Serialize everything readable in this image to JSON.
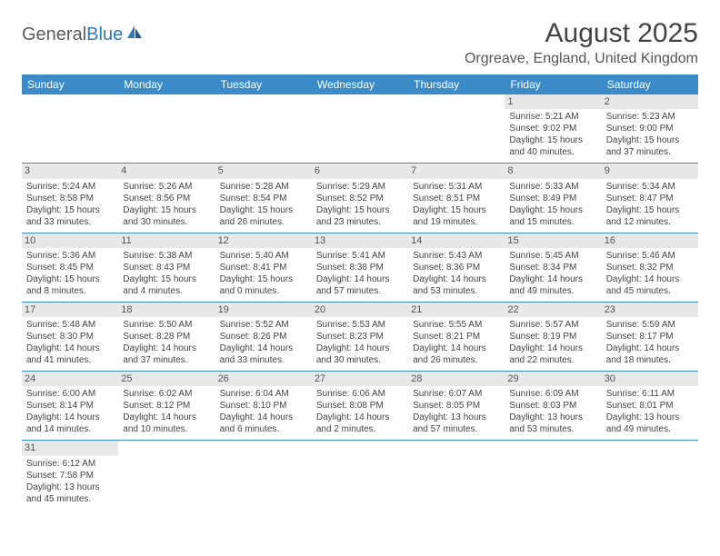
{
  "logo": {
    "part1": "General",
    "part2": "Blue"
  },
  "title": "August 2025",
  "location": "Orgreave, England, United Kingdom",
  "colors": {
    "header_bg": "#3b8bc8",
    "header_text": "#ffffff",
    "daynum_bg": "#e8e8e8",
    "rule": "#3b8bc8",
    "text": "#444444"
  },
  "weekdays": [
    "Sunday",
    "Monday",
    "Tuesday",
    "Wednesday",
    "Thursday",
    "Friday",
    "Saturday"
  ],
  "weeks": [
    [
      {
        "n": "",
        "sr": "",
        "ss": "",
        "dl": ""
      },
      {
        "n": "",
        "sr": "",
        "ss": "",
        "dl": ""
      },
      {
        "n": "",
        "sr": "",
        "ss": "",
        "dl": ""
      },
      {
        "n": "",
        "sr": "",
        "ss": "",
        "dl": ""
      },
      {
        "n": "",
        "sr": "",
        "ss": "",
        "dl": ""
      },
      {
        "n": "1",
        "sr": "Sunrise: 5:21 AM",
        "ss": "Sunset: 9:02 PM",
        "dl": "Daylight: 15 hours and 40 minutes."
      },
      {
        "n": "2",
        "sr": "Sunrise: 5:23 AM",
        "ss": "Sunset: 9:00 PM",
        "dl": "Daylight: 15 hours and 37 minutes."
      }
    ],
    [
      {
        "n": "3",
        "sr": "Sunrise: 5:24 AM",
        "ss": "Sunset: 8:58 PM",
        "dl": "Daylight: 15 hours and 33 minutes."
      },
      {
        "n": "4",
        "sr": "Sunrise: 5:26 AM",
        "ss": "Sunset: 8:56 PM",
        "dl": "Daylight: 15 hours and 30 minutes."
      },
      {
        "n": "5",
        "sr": "Sunrise: 5:28 AM",
        "ss": "Sunset: 8:54 PM",
        "dl": "Daylight: 15 hours and 26 minutes."
      },
      {
        "n": "6",
        "sr": "Sunrise: 5:29 AM",
        "ss": "Sunset: 8:52 PM",
        "dl": "Daylight: 15 hours and 23 minutes."
      },
      {
        "n": "7",
        "sr": "Sunrise: 5:31 AM",
        "ss": "Sunset: 8:51 PM",
        "dl": "Daylight: 15 hours and 19 minutes."
      },
      {
        "n": "8",
        "sr": "Sunrise: 5:33 AM",
        "ss": "Sunset: 8:49 PM",
        "dl": "Daylight: 15 hours and 15 minutes."
      },
      {
        "n": "9",
        "sr": "Sunrise: 5:34 AM",
        "ss": "Sunset: 8:47 PM",
        "dl": "Daylight: 15 hours and 12 minutes."
      }
    ],
    [
      {
        "n": "10",
        "sr": "Sunrise: 5:36 AM",
        "ss": "Sunset: 8:45 PM",
        "dl": "Daylight: 15 hours and 8 minutes."
      },
      {
        "n": "11",
        "sr": "Sunrise: 5:38 AM",
        "ss": "Sunset: 8:43 PM",
        "dl": "Daylight: 15 hours and 4 minutes."
      },
      {
        "n": "12",
        "sr": "Sunrise: 5:40 AM",
        "ss": "Sunset: 8:41 PM",
        "dl": "Daylight: 15 hours and 0 minutes."
      },
      {
        "n": "13",
        "sr": "Sunrise: 5:41 AM",
        "ss": "Sunset: 8:38 PM",
        "dl": "Daylight: 14 hours and 57 minutes."
      },
      {
        "n": "14",
        "sr": "Sunrise: 5:43 AM",
        "ss": "Sunset: 8:36 PM",
        "dl": "Daylight: 14 hours and 53 minutes."
      },
      {
        "n": "15",
        "sr": "Sunrise: 5:45 AM",
        "ss": "Sunset: 8:34 PM",
        "dl": "Daylight: 14 hours and 49 minutes."
      },
      {
        "n": "16",
        "sr": "Sunrise: 5:46 AM",
        "ss": "Sunset: 8:32 PM",
        "dl": "Daylight: 14 hours and 45 minutes."
      }
    ],
    [
      {
        "n": "17",
        "sr": "Sunrise: 5:48 AM",
        "ss": "Sunset: 8:30 PM",
        "dl": "Daylight: 14 hours and 41 minutes."
      },
      {
        "n": "18",
        "sr": "Sunrise: 5:50 AM",
        "ss": "Sunset: 8:28 PM",
        "dl": "Daylight: 14 hours and 37 minutes."
      },
      {
        "n": "19",
        "sr": "Sunrise: 5:52 AM",
        "ss": "Sunset: 8:26 PM",
        "dl": "Daylight: 14 hours and 33 minutes."
      },
      {
        "n": "20",
        "sr": "Sunrise: 5:53 AM",
        "ss": "Sunset: 8:23 PM",
        "dl": "Daylight: 14 hours and 30 minutes."
      },
      {
        "n": "21",
        "sr": "Sunrise: 5:55 AM",
        "ss": "Sunset: 8:21 PM",
        "dl": "Daylight: 14 hours and 26 minutes."
      },
      {
        "n": "22",
        "sr": "Sunrise: 5:57 AM",
        "ss": "Sunset: 8:19 PM",
        "dl": "Daylight: 14 hours and 22 minutes."
      },
      {
        "n": "23",
        "sr": "Sunrise: 5:59 AM",
        "ss": "Sunset: 8:17 PM",
        "dl": "Daylight: 14 hours and 18 minutes."
      }
    ],
    [
      {
        "n": "24",
        "sr": "Sunrise: 6:00 AM",
        "ss": "Sunset: 8:14 PM",
        "dl": "Daylight: 14 hours and 14 minutes."
      },
      {
        "n": "25",
        "sr": "Sunrise: 6:02 AM",
        "ss": "Sunset: 8:12 PM",
        "dl": "Daylight: 14 hours and 10 minutes."
      },
      {
        "n": "26",
        "sr": "Sunrise: 6:04 AM",
        "ss": "Sunset: 8:10 PM",
        "dl": "Daylight: 14 hours and 6 minutes."
      },
      {
        "n": "27",
        "sr": "Sunrise: 6:06 AM",
        "ss": "Sunset: 8:08 PM",
        "dl": "Daylight: 14 hours and 2 minutes."
      },
      {
        "n": "28",
        "sr": "Sunrise: 6:07 AM",
        "ss": "Sunset: 8:05 PM",
        "dl": "Daylight: 13 hours and 57 minutes."
      },
      {
        "n": "29",
        "sr": "Sunrise: 6:09 AM",
        "ss": "Sunset: 8:03 PM",
        "dl": "Daylight: 13 hours and 53 minutes."
      },
      {
        "n": "30",
        "sr": "Sunrise: 6:11 AM",
        "ss": "Sunset: 8:01 PM",
        "dl": "Daylight: 13 hours and 49 minutes."
      }
    ],
    [
      {
        "n": "31",
        "sr": "Sunrise: 6:12 AM",
        "ss": "Sunset: 7:58 PM",
        "dl": "Daylight: 13 hours and 45 minutes."
      },
      {
        "n": "",
        "sr": "",
        "ss": "",
        "dl": ""
      },
      {
        "n": "",
        "sr": "",
        "ss": "",
        "dl": ""
      },
      {
        "n": "",
        "sr": "",
        "ss": "",
        "dl": ""
      },
      {
        "n": "",
        "sr": "",
        "ss": "",
        "dl": ""
      },
      {
        "n": "",
        "sr": "",
        "ss": "",
        "dl": ""
      },
      {
        "n": "",
        "sr": "",
        "ss": "",
        "dl": ""
      }
    ]
  ]
}
